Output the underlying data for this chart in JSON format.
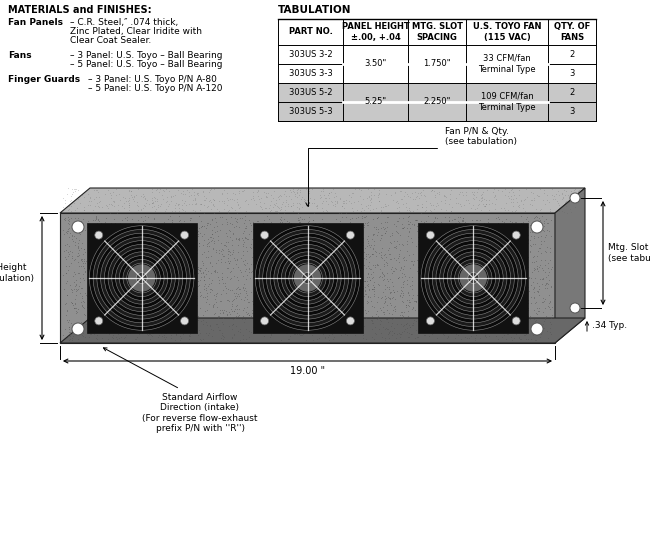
{
  "bg_color": "#ffffff",
  "materials_title": "MATERIALS and FINISHES:",
  "tab_title": "TABULATION",
  "tab_headers": [
    "PART NO.",
    "PANEL HEIGHT\n±.00, +.04",
    "MTG. SLOT\nSPACING",
    "U.S. TOYO FAN\n(115 VAC)",
    "QTY. OF\nFANS"
  ],
  "tab_rows": [
    [
      "303US 3-2",
      "3.50\"",
      "1.750\"",
      "33 CFM/fan\nTerminal Type",
      "2"
    ],
    [
      "303US 3-3",
      "",
      "",
      "",
      "3"
    ],
    [
      "303US 5-2",
      "5.25\"",
      "2.250\"",
      "109 CFM/fan\nTerminal Type",
      "2"
    ],
    [
      "303US 5-3",
      "",
      "",
      "",
      "3"
    ]
  ],
  "ann_fan_pn": "Fan P/N & Qty.\n(see tabulation)",
  "ann_panel_height": "Panel Height\n(see tabulation)",
  "ann_mtg_slot": "Mtg. Slot Spacing\n(see tabulation)",
  "ann_airflow": "Standard Airflow\nDirection (intake)\n(For reverse flow-exhaust\nprefix P/N with ''R'')",
  "dim_width": "19.00 \"",
  "dim_slot": ".34 Typ.",
  "shade_color": "#c8c8c8"
}
